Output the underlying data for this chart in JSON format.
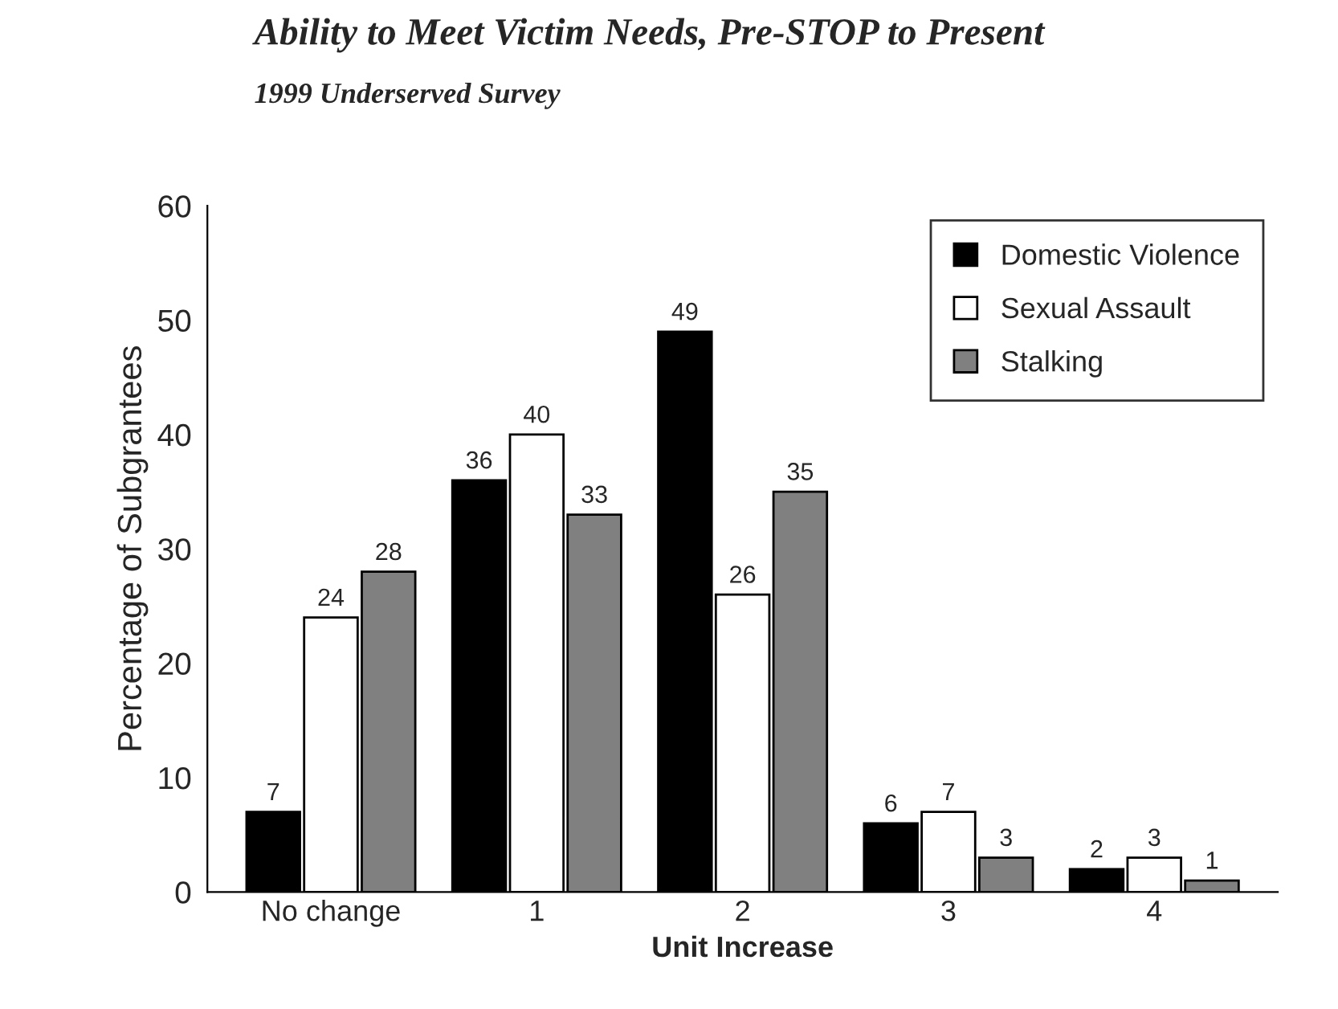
{
  "chart_data": {
    "type": "bar",
    "title": "Ability to Meet Victim Needs, Pre-STOP to Present",
    "subtitle": "1999 Underserved Survey",
    "xlabel": "Unit Increase",
    "ylabel": "Percentage of Subgrantees",
    "categories": [
      "No change",
      "1",
      "2",
      "3",
      "4"
    ],
    "series": [
      {
        "name": "Domestic Violence",
        "color": "#000000",
        "values": [
          7,
          36,
          49,
          6,
          2
        ]
      },
      {
        "name": "Sexual Assault",
        "color": "#ffffff",
        "values": [
          24,
          40,
          26,
          7,
          3
        ]
      },
      {
        "name": "Stalking",
        "color": "#808080",
        "values": [
          28,
          33,
          35,
          3,
          1
        ]
      }
    ],
    "ylim": [
      0,
      60
    ],
    "yticks": [
      0,
      10,
      20,
      30,
      40,
      50,
      60
    ],
    "grid": false,
    "legend": "top right",
    "data_labels": true
  }
}
